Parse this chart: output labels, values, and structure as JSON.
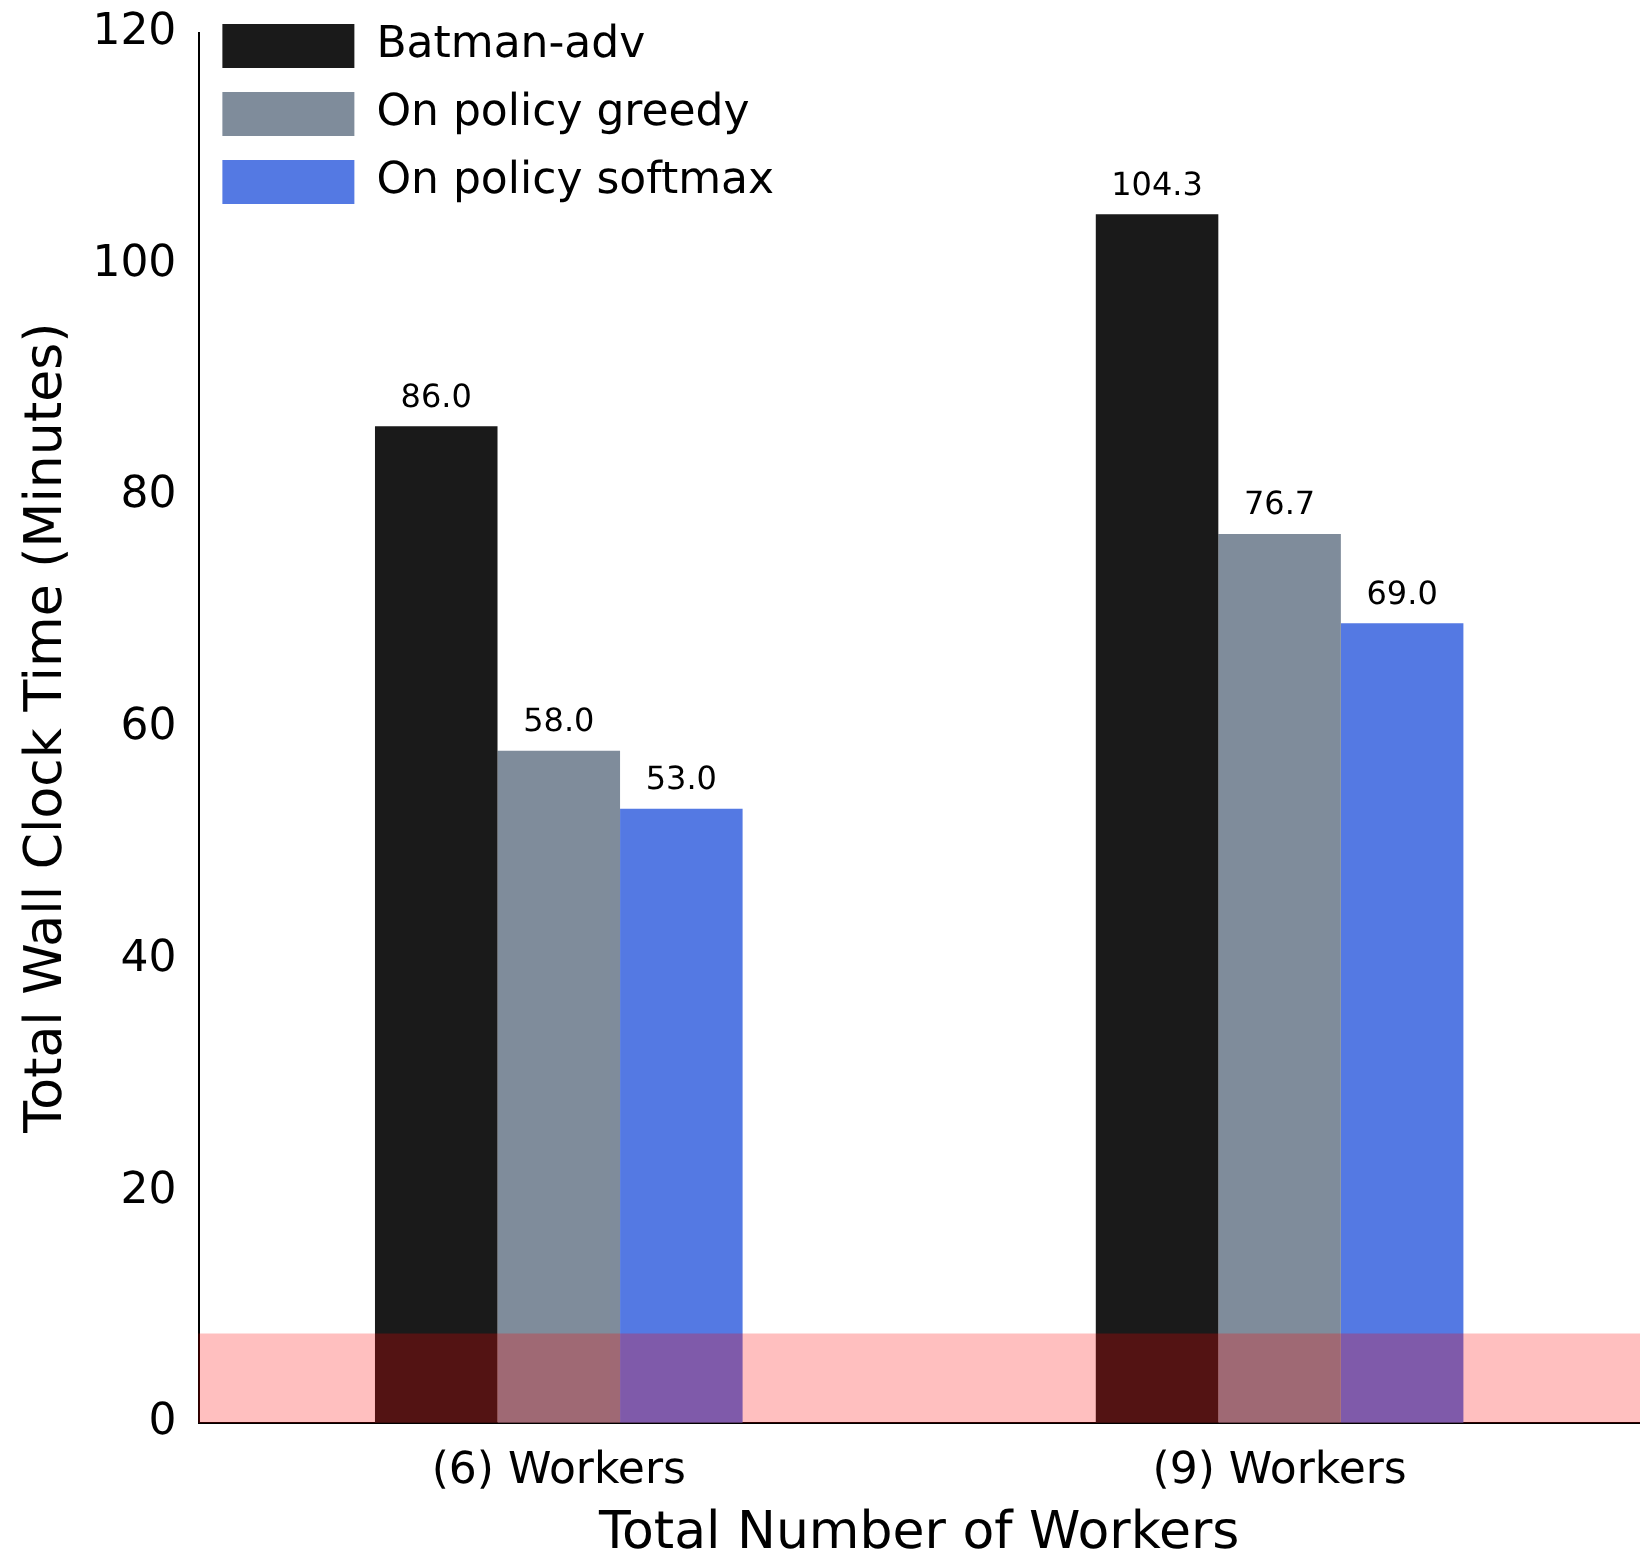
{
  "chart_data": {
    "type": "bar",
    "xlabel": "Total Number of Workers",
    "ylabel": "Total Wall Clock Time (Minutes)",
    "categories": [
      "(6) Workers",
      "(9) Workers"
    ],
    "series": [
      {
        "name": "Batman-adv",
        "color": "#1a1a1a",
        "values": [
          86.0,
          104.3
        ],
        "value_labels": [
          "86.0",
          "104.3"
        ]
      },
      {
        "name": "On policy greedy",
        "color": "#7f8c9b",
        "values": [
          58.0,
          76.7
        ],
        "value_labels": [
          "58.0",
          "76.7"
        ]
      },
      {
        "name": "On policy softmax",
        "color": "#5479e3",
        "values": [
          53.0,
          69.0
        ],
        "value_labels": [
          "53.0",
          "69.0"
        ]
      }
    ],
    "bands": [
      {
        "axis": "y",
        "from": 0,
        "to": 7.7,
        "color": "#ff0000"
      }
    ],
    "ylim": [
      0,
      120
    ],
    "yticks": [
      0,
      20,
      40,
      60,
      80,
      100,
      120
    ],
    "grid": false,
    "legend": "top left"
  }
}
